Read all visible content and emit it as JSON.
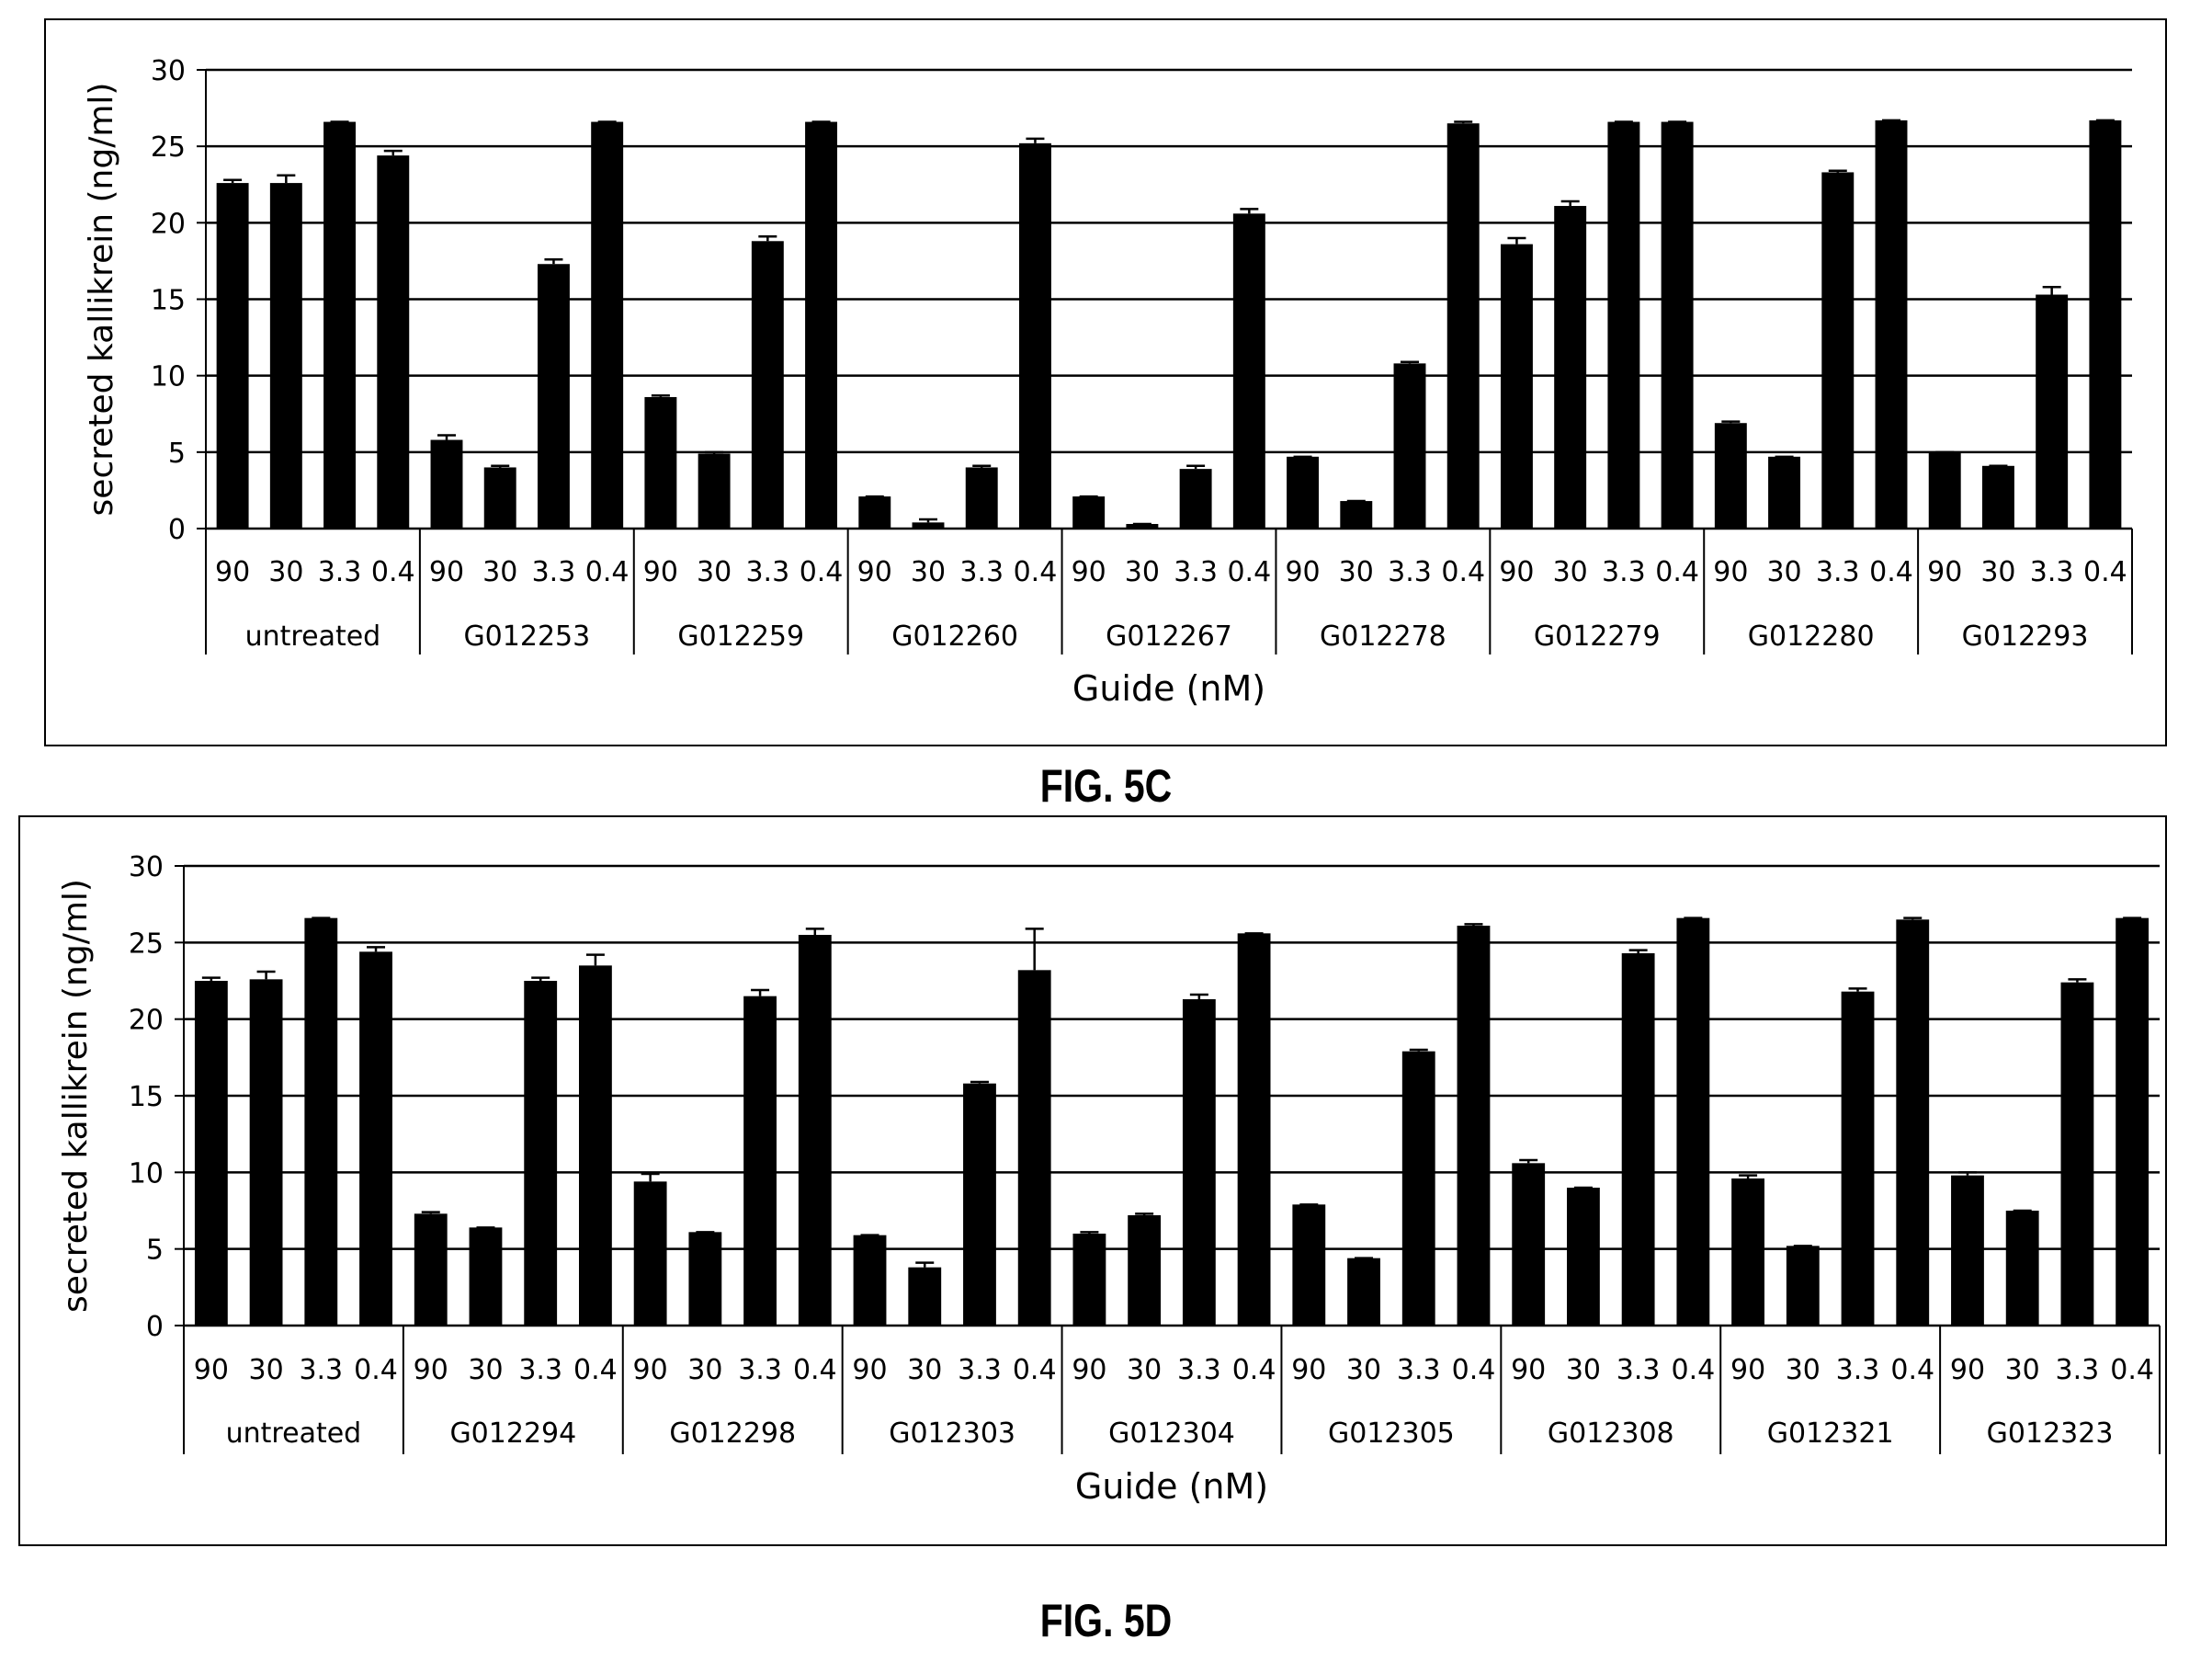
{
  "figures": [
    {
      "id": "c",
      "label": "FIG. 5C"
    },
    {
      "id": "d",
      "label": "FIG. 5D"
    }
  ],
  "chart_data": [
    {
      "type": "bar",
      "figure": "FIG. 5C",
      "ylabel": "secreted kallikrein (ng/ml)",
      "xlabel": "Guide (nM)",
      "ylim": [
        0,
        30
      ],
      "yticks": [
        0,
        5,
        10,
        15,
        20,
        25,
        30
      ],
      "grid": true,
      "concentrations": [
        "90",
        "30",
        "3.3",
        "0.4"
      ],
      "groups": [
        {
          "name": "untreated",
          "values": [
            22.6,
            22.6,
            26.6,
            24.4
          ],
          "errors": [
            0.2,
            0.5,
            0,
            0.3
          ]
        },
        {
          "name": "G012253",
          "values": [
            5.8,
            4.0,
            17.3,
            26.6
          ],
          "errors": [
            0.3,
            0.1,
            0.3,
            0
          ]
        },
        {
          "name": "G012259",
          "values": [
            8.6,
            4.9,
            18.8,
            26.6
          ],
          "errors": [
            0.1,
            0.1,
            0.3,
            0
          ]
        },
        {
          "name": "G012260",
          "values": [
            2.1,
            0.4,
            4.0,
            25.2
          ],
          "errors": [
            0,
            0.2,
            0.1,
            0.3
          ]
        },
        {
          "name": "G012267",
          "values": [
            2.1,
            0.3,
            3.9,
            20.6
          ],
          "errors": [
            0,
            0,
            0.2,
            0.3
          ]
        },
        {
          "name": "G012278",
          "values": [
            4.7,
            1.8,
            10.8,
            26.5
          ],
          "errors": [
            0,
            0,
            0.1,
            0.1
          ]
        },
        {
          "name": "G012279",
          "values": [
            18.6,
            21.1,
            26.6,
            26.6
          ],
          "errors": [
            0.4,
            0.3,
            0,
            0
          ]
        },
        {
          "name": "G012280",
          "values": [
            6.9,
            4.7,
            23.3,
            26.7
          ],
          "errors": [
            0.1,
            0,
            0.1,
            0
          ]
        },
        {
          "name": "G012293",
          "values": [
            5.0,
            4.1,
            15.3,
            26.7
          ],
          "errors": [
            0,
            0,
            0.5,
            0
          ]
        }
      ]
    },
    {
      "type": "bar",
      "figure": "FIG. 5D",
      "ylabel": "secreted kallikrein (ng/ml)",
      "xlabel": "Guide (nM)",
      "ylim": [
        0,
        30
      ],
      "yticks": [
        0,
        5,
        10,
        15,
        20,
        25,
        30
      ],
      "grid": true,
      "concentrations": [
        "90",
        "30",
        "3.3",
        "0.4"
      ],
      "groups": [
        {
          "name": "untreated",
          "values": [
            22.5,
            22.6,
            26.6,
            24.4
          ],
          "errors": [
            0.2,
            0.5,
            0,
            0.3
          ]
        },
        {
          "name": "G012294",
          "values": [
            7.3,
            6.4,
            22.5,
            23.5
          ],
          "errors": [
            0.1,
            0,
            0.2,
            0.7
          ]
        },
        {
          "name": "G012298",
          "values": [
            9.4,
            6.1,
            21.5,
            25.5
          ],
          "errors": [
            0.5,
            0,
            0.4,
            0.4
          ]
        },
        {
          "name": "G012303",
          "values": [
            5.9,
            3.8,
            15.8,
            23.2
          ],
          "errors": [
            0,
            0.3,
            0.1,
            2.7
          ]
        },
        {
          "name": "G012304",
          "values": [
            6.0,
            7.2,
            21.3,
            25.6
          ],
          "errors": [
            0.1,
            0.1,
            0.3,
            0
          ]
        },
        {
          "name": "G012305",
          "values": [
            7.9,
            4.4,
            17.9,
            26.1
          ],
          "errors": [
            0,
            0,
            0.1,
            0.1
          ]
        },
        {
          "name": "G012308",
          "values": [
            10.6,
            9.0,
            24.3,
            26.6
          ],
          "errors": [
            0.2,
            0,
            0.2,
            0
          ]
        },
        {
          "name": "G012321",
          "values": [
            9.6,
            5.2,
            21.8,
            26.5
          ],
          "errors": [
            0.2,
            0,
            0.2,
            0.1
          ]
        },
        {
          "name": "G012323",
          "values": [
            9.8,
            7.5,
            22.4,
            26.6
          ],
          "errors": [
            0.2,
            0,
            0.2,
            0
          ]
        }
      ]
    }
  ]
}
